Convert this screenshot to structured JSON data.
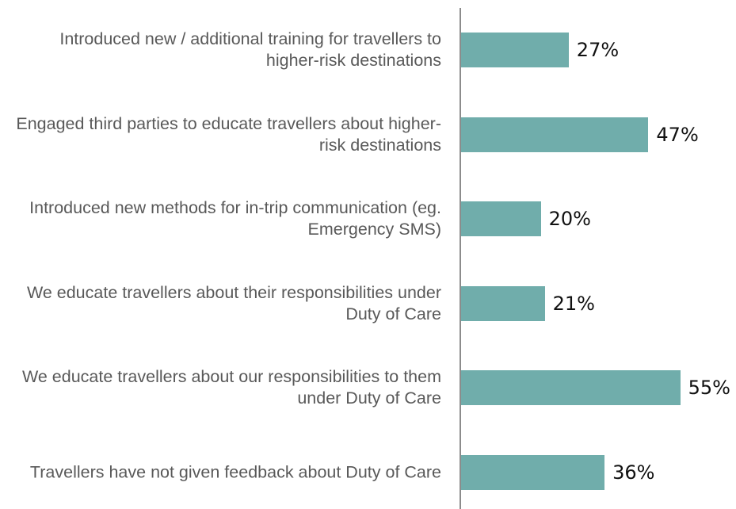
{
  "chart_data": {
    "type": "bar",
    "orientation": "horizontal",
    "categories": [
      "Introduced new / additional training for travellers to higher-risk destinations",
      "Engaged third parties to educate travellers about higher-risk destinations",
      "Introduced new methods for in-trip communication (eg. Emergency SMS)",
      "We educate travellers about their responsibilities under Duty of Care",
      "We educate travellers about our responsibilities to them under Duty of Care",
      "Travellers have not given feedback about Duty of Care"
    ],
    "values": [
      27,
      47,
      20,
      21,
      55,
      36
    ],
    "value_labels": [
      "27%",
      "47%",
      "20%",
      "21%",
      "55%",
      "36%"
    ],
    "color": "#70adab"
  }
}
